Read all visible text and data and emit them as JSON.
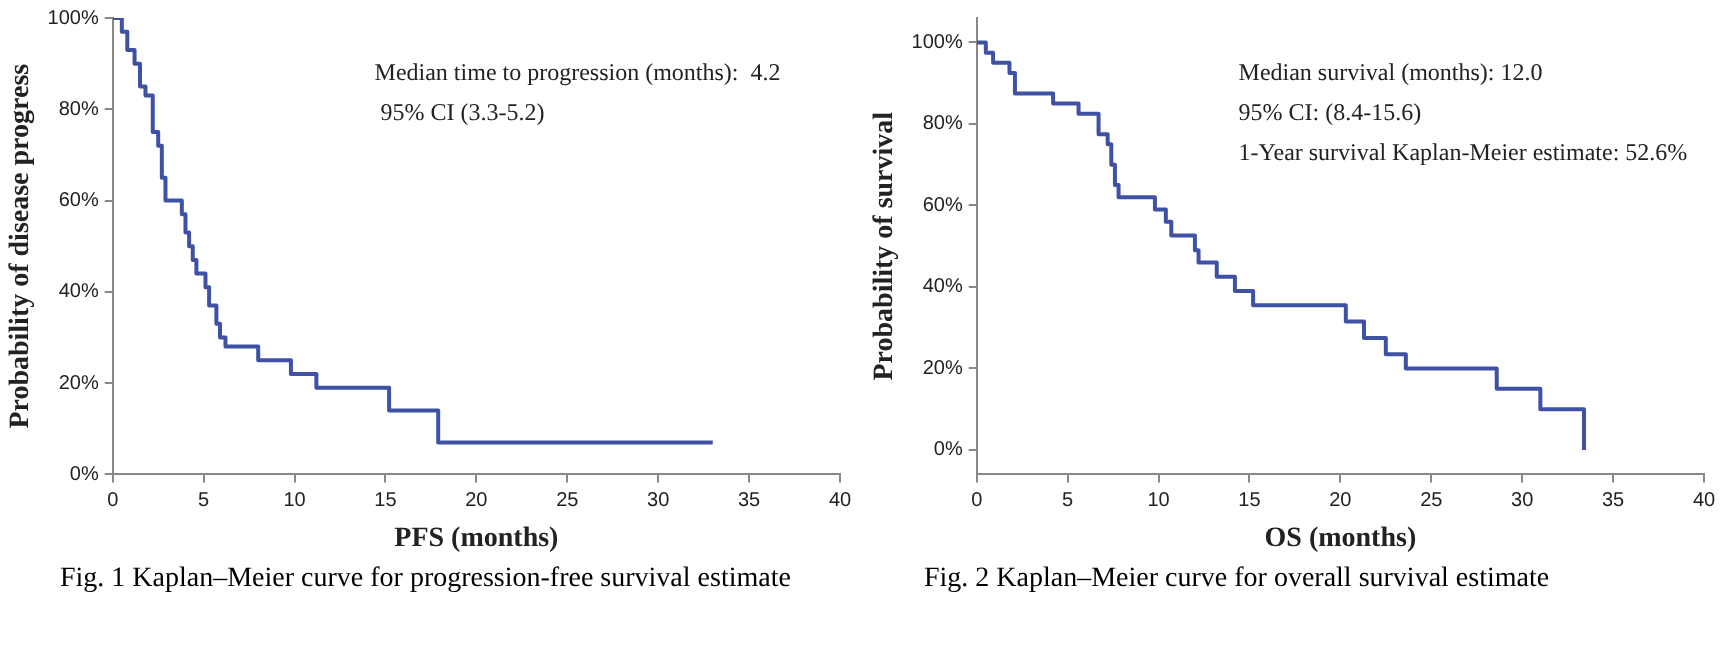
{
  "chart_data": [
    {
      "type": "step",
      "title": "Fig. 1  Kaplan–Meier curve for progression-free survival estimate",
      "xlabel": "PFS (months)",
      "ylabel": "Probability of disease progress",
      "annotations": [
        "Median time to progression (months):  4.2",
        " 95% CI (3.3-5.2)"
      ],
      "series": [
        {
          "color": "#3f51a5",
          "x": [
            0,
            0.5,
            0.8,
            1.2,
            1.5,
            1.8,
            2.2,
            2.5,
            2.7,
            2.9,
            3.8,
            4.0,
            4.2,
            4.4,
            4.6,
            5.1,
            5.3,
            5.7,
            5.9,
            6.2,
            8.0,
            9.8,
            11.2,
            15.2,
            17.9,
            33
          ],
          "values": [
            100,
            97,
            93,
            90,
            85,
            83,
            75,
            72,
            65,
            60,
            57,
            53,
            50,
            47,
            44,
            41,
            37,
            33,
            30,
            28,
            25,
            22,
            19,
            14,
            7,
            7
          ]
        }
      ],
      "xlim": [
        0,
        40
      ],
      "xticks": [
        0,
        5,
        10,
        15,
        20,
        25,
        30,
        35,
        40
      ],
      "ylim": [
        0,
        100
      ],
      "yticks": [
        {
          "value": 0,
          "label": "0%"
        },
        {
          "value": 20,
          "label": "20%"
        },
        {
          "value": 40,
          "label": "40%"
        },
        {
          "value": 60,
          "label": "60%"
        },
        {
          "value": 80,
          "label": "80%"
        },
        {
          "value": 100,
          "label": "100%"
        }
      ],
      "grid": false,
      "legend": false,
      "marker": "none",
      "line_style": "solid"
    },
    {
      "type": "step",
      "title": "Fig. 2  Kaplan–Meier curve for overall survival estimate",
      "xlabel": "OS (months)",
      "ylabel": "Probability of survival",
      "annotations": [
        "Median survival (months): 12.0",
        "95% CI: (8.4-15.6)",
        "1-Year survival Kaplan-Meier estimate: 52.6%"
      ],
      "series": [
        {
          "color": "#3f51a5",
          "x": [
            0,
            0.5,
            0.9,
            1.8,
            2.1,
            4.2,
            5.6,
            6.7,
            7.2,
            7.4,
            7.6,
            7.8,
            9.8,
            10.4,
            10.7,
            12.0,
            12.2,
            13.2,
            14.2,
            15.2,
            20.3,
            21.3,
            22.5,
            23.6,
            28.6,
            31.0,
            33.4
          ],
          "values": [
            100,
            97.5,
            95,
            92.5,
            87.5,
            85,
            82.5,
            77.5,
            75,
            70,
            65,
            62,
            59,
            56,
            52.6,
            49,
            46,
            42.5,
            39,
            35.5,
            31.5,
            27.5,
            23.5,
            20,
            15,
            10,
            0
          ]
        }
      ],
      "xlim": [
        0,
        40
      ],
      "xticks": [
        0,
        5,
        10,
        15,
        20,
        25,
        30,
        35,
        40
      ],
      "ylim": [
        -6,
        106
      ],
      "yticks": [
        {
          "value": 0,
          "label": "0%"
        },
        {
          "value": 20,
          "label": "20%"
        },
        {
          "value": 40,
          "label": "40%"
        },
        {
          "value": 60,
          "label": "60%"
        },
        {
          "value": 80,
          "label": "80%"
        },
        {
          "value": 100,
          "label": "100%"
        }
      ],
      "grid": false,
      "legend": false,
      "marker": "none",
      "line_style": "solid"
    }
  ]
}
